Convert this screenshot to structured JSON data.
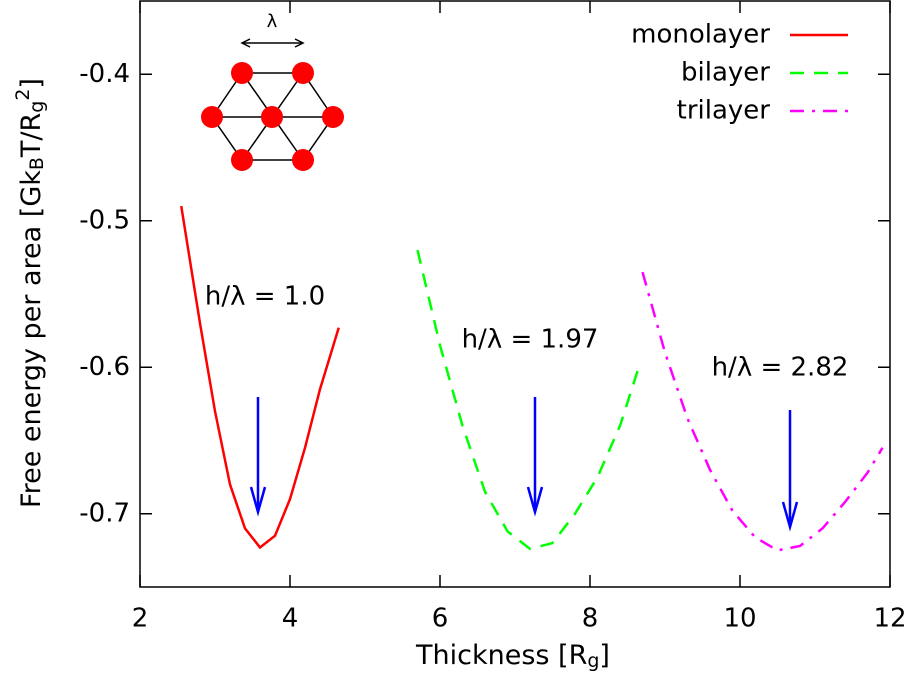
{
  "chart_data": {
    "type": "line",
    "xlabel_parts": [
      {
        "text": "Thickness [R"
      },
      {
        "text": "g",
        "sub": true
      },
      {
        "text": "]"
      }
    ],
    "ylabel_parts": [
      {
        "text": "Free energy per area [Gk"
      },
      {
        "text": "B",
        "sub": true
      },
      {
        "text": "T/R"
      },
      {
        "text": "g",
        "sub": true
      },
      {
        "text": "2",
        "sup": true
      },
      {
        "text": "]"
      }
    ],
    "xlim": [
      2,
      12
    ],
    "xticks": [
      2,
      4,
      6,
      8,
      10,
      12
    ],
    "ylim": [
      -0.75,
      -0.35
    ],
    "yticks": [
      -0.4,
      -0.5,
      -0.6,
      -0.7
    ],
    "legend": "top-right",
    "series": [
      {
        "name": "monolayer",
        "color": "#ff0000",
        "line_style": "solid",
        "x": [
          2.55,
          2.8,
          3.0,
          3.2,
          3.4,
          3.6,
          3.8,
          4.0,
          4.2,
          4.4,
          4.65
        ],
        "values": [
          -0.49,
          -0.57,
          -0.63,
          -0.68,
          -0.71,
          -0.723,
          -0.715,
          -0.69,
          -0.655,
          -0.615,
          -0.573
        ]
      },
      {
        "name": "bilayer",
        "color": "#00ff00",
        "line_style": "dashed",
        "x": [
          5.7,
          6.0,
          6.3,
          6.6,
          6.9,
          7.2,
          7.5,
          7.8,
          8.1,
          8.4,
          8.65
        ],
        "values": [
          -0.52,
          -0.585,
          -0.64,
          -0.685,
          -0.712,
          -0.724,
          -0.72,
          -0.7,
          -0.675,
          -0.64,
          -0.6
        ]
      },
      {
        "name": "trilayer",
        "color": "#ff00ff",
        "line_style": "dashdot",
        "x": [
          8.7,
          9.0,
          9.3,
          9.6,
          9.9,
          10.2,
          10.5,
          10.8,
          11.1,
          11.4,
          11.7,
          11.9
        ],
        "values": [
          -0.535,
          -0.59,
          -0.635,
          -0.67,
          -0.698,
          -0.716,
          -0.725,
          -0.722,
          -0.71,
          -0.692,
          -0.672,
          -0.655
        ]
      }
    ],
    "annotations": [
      "h/λ = 1.0",
      "h/λ = 1.97",
      "h/λ = 2.82"
    ],
    "inset_label": "λ"
  }
}
